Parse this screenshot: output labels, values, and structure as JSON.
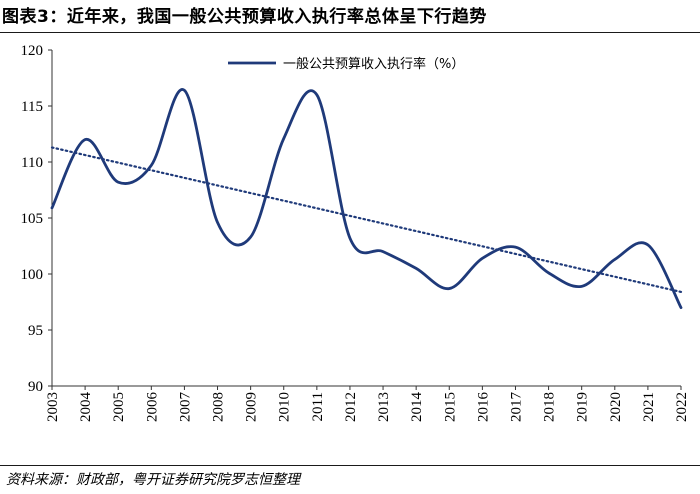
{
  "header": {
    "title": "图表3：近年来，我国一般公共预算收入执行率总体呈下行趋势"
  },
  "footer": {
    "source": "资料来源：财政部，粤开证券研究院罗志恒整理"
  },
  "chart_data": {
    "type": "line",
    "title": "图表3：近年来，我国一般公共预算收入执行率总体呈下行趋势",
    "categories": [
      "2003",
      "2004",
      "2005",
      "2006",
      "2007",
      "2008",
      "2009",
      "2010",
      "2011",
      "2012",
      "2013",
      "2014",
      "2015",
      "2016",
      "2017",
      "2018",
      "2019",
      "2020",
      "2021",
      "2022"
    ],
    "series": [
      {
        "name": "一般公共预算收入执行率（%）",
        "color": "#1f3a7a",
        "values": [
          105.9,
          112.0,
          108.2,
          109.7,
          116.4,
          104.6,
          103.3,
          112.1,
          116.0,
          103.2,
          102.0,
          100.5,
          98.7,
          101.4,
          102.4,
          100.1,
          98.9,
          101.3,
          102.6,
          97.0
        ]
      }
    ],
    "trendline": {
      "style": "dotted",
      "color": "#1f3a7a",
      "start": 111.3,
      "end": 98.4
    },
    "ylim": [
      90,
      120
    ],
    "yticks": [
      90,
      95,
      100,
      105,
      110,
      115,
      120
    ],
    "legend_position": "top-center",
    "grid": false
  }
}
